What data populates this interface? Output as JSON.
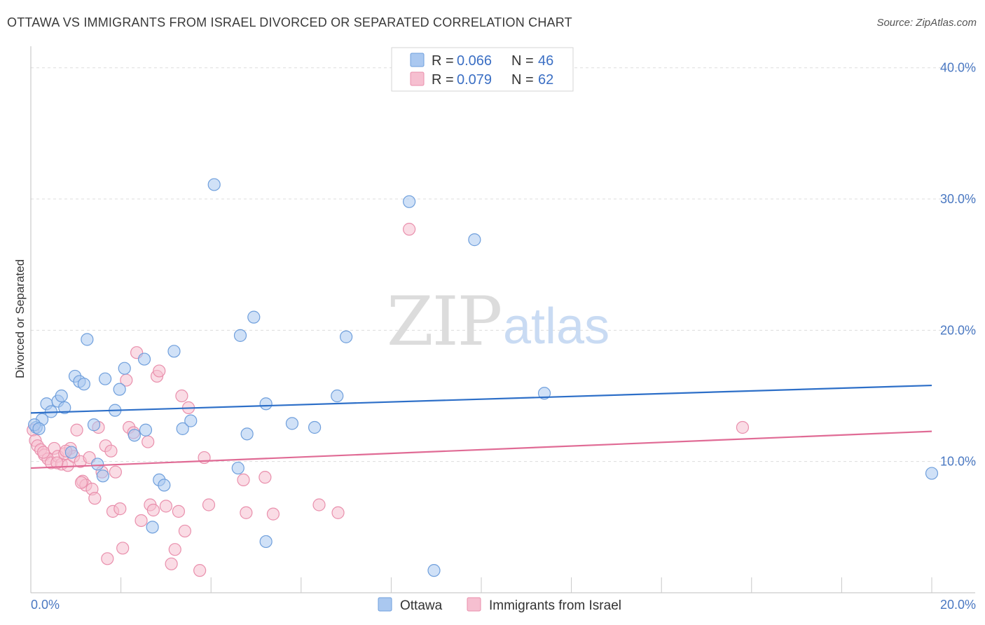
{
  "header": {
    "title": "OTTAWA VS IMMIGRANTS FROM ISRAEL DIVORCED OR SEPARATED CORRELATION CHART",
    "source": "Source: ZipAtlas.com"
  },
  "watermark": {
    "zip": "ZIP",
    "atlas": "atlas"
  },
  "colors": {
    "ottawa_fill": "#aac8f0",
    "ottawa_stroke": "#6f9fdc",
    "ottawa_line": "#2d6fc8",
    "israel_fill": "#f6bfd0",
    "israel_stroke": "#e98fac",
    "israel_line": "#e06b95",
    "tick_label": "#4a78c2",
    "grid": "#dddddd"
  },
  "legend": {
    "rows": [
      {
        "r_label": "R = ",
        "r_value": "0.066",
        "n_label": "N = ",
        "n_value": "46"
      },
      {
        "r_label": "R = ",
        "r_value": "0.079",
        "n_label": "N = ",
        "n_value": "62"
      }
    ]
  },
  "chart_data": {
    "type": "scatter",
    "title": "OTTAWA VS IMMIGRANTS FROM ISRAEL DIVORCED OR SEPARATED CORRELATION CHART",
    "xlabel": "",
    "ylabel": "Divorced or Separated",
    "xlim": [
      0,
      20
    ],
    "ylim": [
      0,
      41
    ],
    "x_tick_labels": [
      {
        "value": 0,
        "label": "0.0%"
      },
      {
        "value": 20,
        "label": "20.0%"
      }
    ],
    "y_tick_labels": [
      {
        "value": 10,
        "label": "10.0%"
      },
      {
        "value": 20,
        "label": "20.0%"
      },
      {
        "value": 30,
        "label": "30.0%"
      },
      {
        "value": 40,
        "label": "40.0%"
      }
    ],
    "grid": true,
    "legend_position": "top-center",
    "series": [
      {
        "name": "Ottawa",
        "r": 0.066,
        "n": 46,
        "trend": {
          "x": [
            0,
            20
          ],
          "y": [
            13.7,
            15.8
          ]
        },
        "points": [
          [
            0.12,
            12.6
          ],
          [
            0.25,
            13.2
          ],
          [
            0.35,
            14.4
          ],
          [
            0.45,
            13.8
          ],
          [
            0.6,
            14.6
          ],
          [
            0.68,
            15.0
          ],
          [
            0.75,
            14.1
          ],
          [
            0.9,
            10.7
          ],
          [
            0.98,
            16.5
          ],
          [
            1.08,
            16.1
          ],
          [
            1.18,
            15.9
          ],
          [
            1.25,
            19.3
          ],
          [
            1.4,
            12.8
          ],
          [
            1.48,
            9.8
          ],
          [
            1.6,
            8.9
          ],
          [
            1.65,
            16.3
          ],
          [
            1.87,
            13.9
          ],
          [
            1.97,
            15.5
          ],
          [
            2.08,
            17.1
          ],
          [
            2.3,
            12.0
          ],
          [
            2.52,
            17.8
          ],
          [
            2.55,
            12.4
          ],
          [
            2.7,
            5.0
          ],
          [
            2.85,
            8.6
          ],
          [
            2.96,
            8.2
          ],
          [
            3.18,
            18.4
          ],
          [
            3.37,
            12.5
          ],
          [
            3.55,
            13.1
          ],
          [
            4.07,
            31.1
          ],
          [
            4.6,
            9.5
          ],
          [
            4.65,
            19.6
          ],
          [
            4.8,
            12.1
          ],
          [
            4.95,
            21.0
          ],
          [
            5.22,
            14.4
          ],
          [
            5.22,
            3.9
          ],
          [
            5.8,
            12.9
          ],
          [
            6.3,
            12.6
          ],
          [
            6.8,
            15.0
          ],
          [
            7.0,
            19.5
          ],
          [
            8.4,
            29.8
          ],
          [
            8.95,
            1.7
          ],
          [
            9.85,
            26.9
          ],
          [
            11.4,
            15.2
          ],
          [
            20.0,
            9.1
          ],
          [
            0.08,
            12.8
          ],
          [
            0.18,
            12.5
          ]
        ]
      },
      {
        "name": "Immigrants from Israel",
        "r": 0.079,
        "n": 62,
        "trend": {
          "x": [
            0,
            20
          ],
          "y": [
            9.5,
            12.3
          ]
        },
        "points": [
          [
            0.05,
            12.4
          ],
          [
            0.1,
            11.6
          ],
          [
            0.15,
            11.2
          ],
          [
            0.22,
            10.9
          ],
          [
            0.3,
            10.5
          ],
          [
            0.38,
            10.2
          ],
          [
            0.45,
            9.9
          ],
          [
            0.52,
            11.0
          ],
          [
            0.6,
            10.4
          ],
          [
            0.68,
            9.8
          ],
          [
            0.75,
            10.6
          ],
          [
            0.82,
            9.7
          ],
          [
            0.88,
            11.0
          ],
          [
            0.95,
            10.4
          ],
          [
            1.02,
            12.4
          ],
          [
            1.1,
            10.0
          ],
          [
            1.15,
            8.5
          ],
          [
            1.22,
            8.2
          ],
          [
            1.3,
            10.3
          ],
          [
            1.36,
            7.9
          ],
          [
            1.42,
            7.2
          ],
          [
            1.5,
            12.6
          ],
          [
            1.58,
            9.2
          ],
          [
            1.66,
            11.2
          ],
          [
            1.7,
            2.6
          ],
          [
            1.78,
            10.8
          ],
          [
            1.82,
            6.2
          ],
          [
            1.88,
            9.2
          ],
          [
            1.98,
            6.4
          ],
          [
            2.04,
            3.4
          ],
          [
            2.12,
            16.2
          ],
          [
            2.18,
            12.6
          ],
          [
            2.28,
            12.2
          ],
          [
            2.35,
            18.3
          ],
          [
            2.45,
            5.5
          ],
          [
            2.6,
            11.5
          ],
          [
            2.65,
            6.7
          ],
          [
            2.72,
            6.3
          ],
          [
            2.8,
            16.5
          ],
          [
            2.85,
            16.9
          ],
          [
            3.0,
            6.6
          ],
          [
            3.12,
            2.2
          ],
          [
            3.2,
            3.3
          ],
          [
            3.28,
            6.2
          ],
          [
            3.35,
            15.0
          ],
          [
            3.42,
            4.7
          ],
          [
            3.5,
            14.1
          ],
          [
            3.75,
            1.7
          ],
          [
            3.85,
            10.3
          ],
          [
            3.95,
            6.7
          ],
          [
            4.72,
            8.6
          ],
          [
            4.78,
            6.1
          ],
          [
            5.2,
            8.8
          ],
          [
            5.38,
            6.0
          ],
          [
            6.4,
            6.7
          ],
          [
            6.82,
            6.1
          ],
          [
            8.4,
            27.7
          ],
          [
            15.8,
            12.6
          ],
          [
            0.58,
            9.9
          ],
          [
            0.78,
            10.8
          ],
          [
            1.12,
            8.4
          ],
          [
            0.28,
            10.7
          ]
        ]
      }
    ]
  },
  "bottom_legend": {
    "items": [
      {
        "label": "Ottawa"
      },
      {
        "label": "Immigrants from Israel"
      }
    ]
  }
}
